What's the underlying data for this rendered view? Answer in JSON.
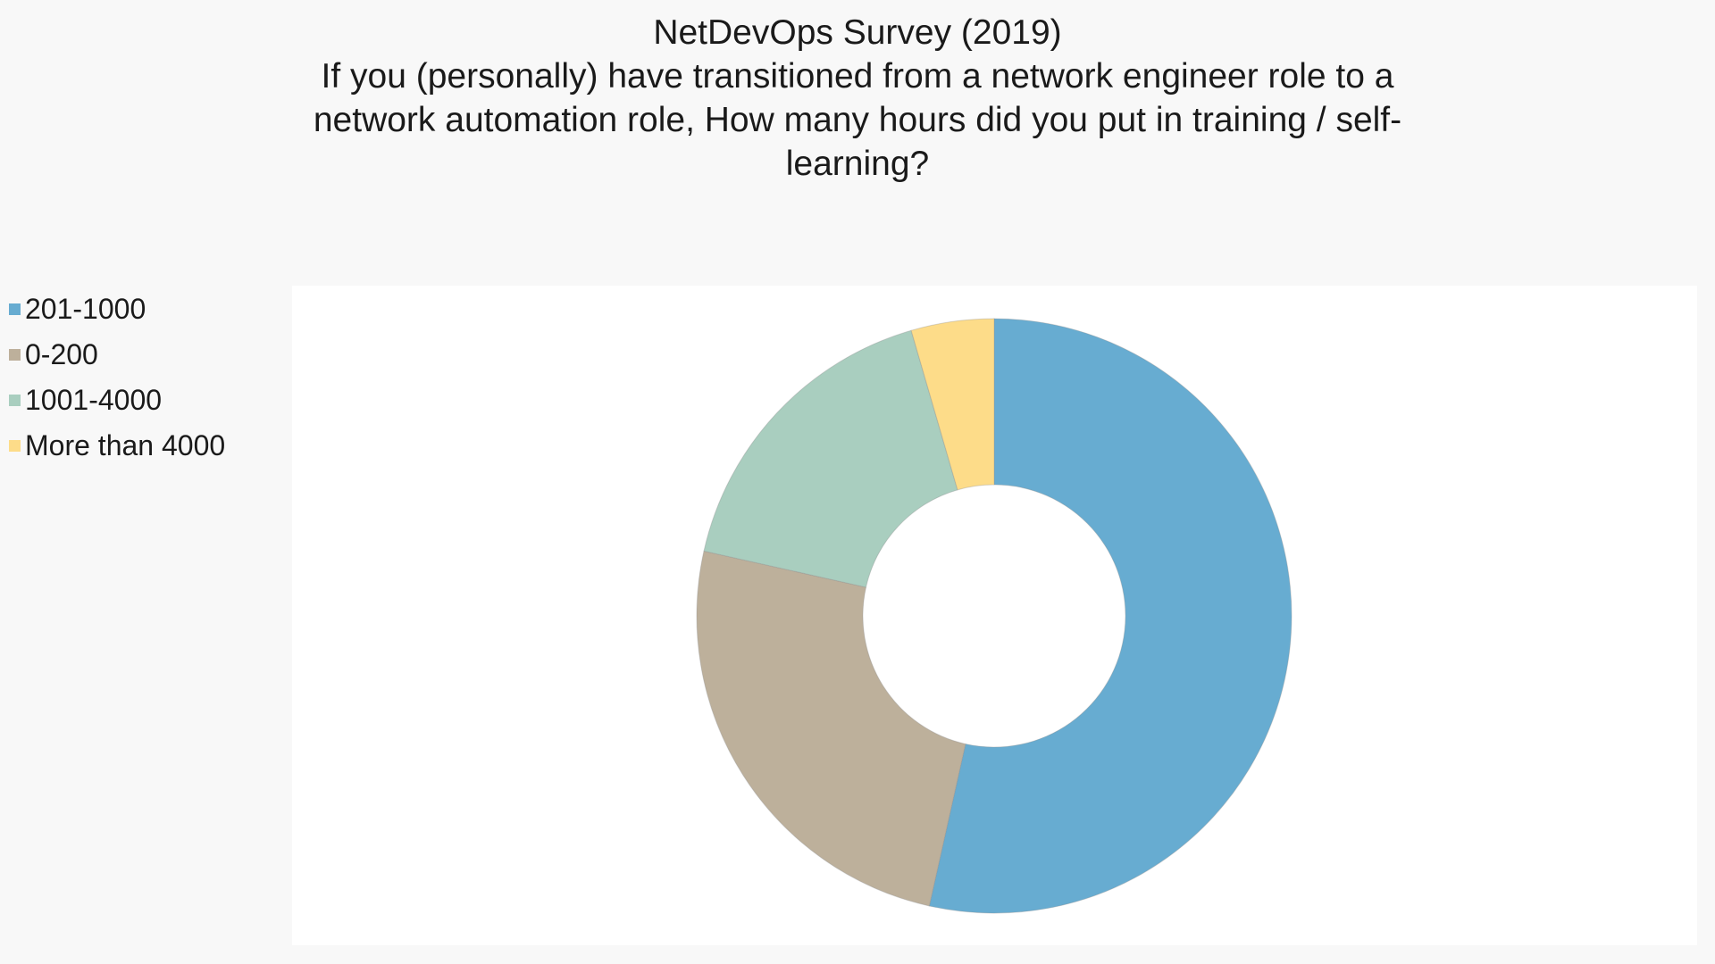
{
  "chart_data": {
    "type": "pie",
    "donut": true,
    "title": "NetDevOps Survey (2019)",
    "subtitle": "If you (personally) have transitioned from a network engineer role to a network automation role, How many hours did you put in training / self-learning?",
    "legend_position": "left",
    "start_angle_deg": 0,
    "direction": "clockwise",
    "series": [
      {
        "label": "201-1000",
        "value": 53.5,
        "color": "#67acd1"
      },
      {
        "label": "0-200",
        "value": 25.0,
        "color": "#bdb09b"
      },
      {
        "label": "1001-4000",
        "value": 17.0,
        "color": "#a9cebf"
      },
      {
        "label": "More than 4000",
        "value": 4.5,
        "color": "#fddc89"
      }
    ]
  }
}
